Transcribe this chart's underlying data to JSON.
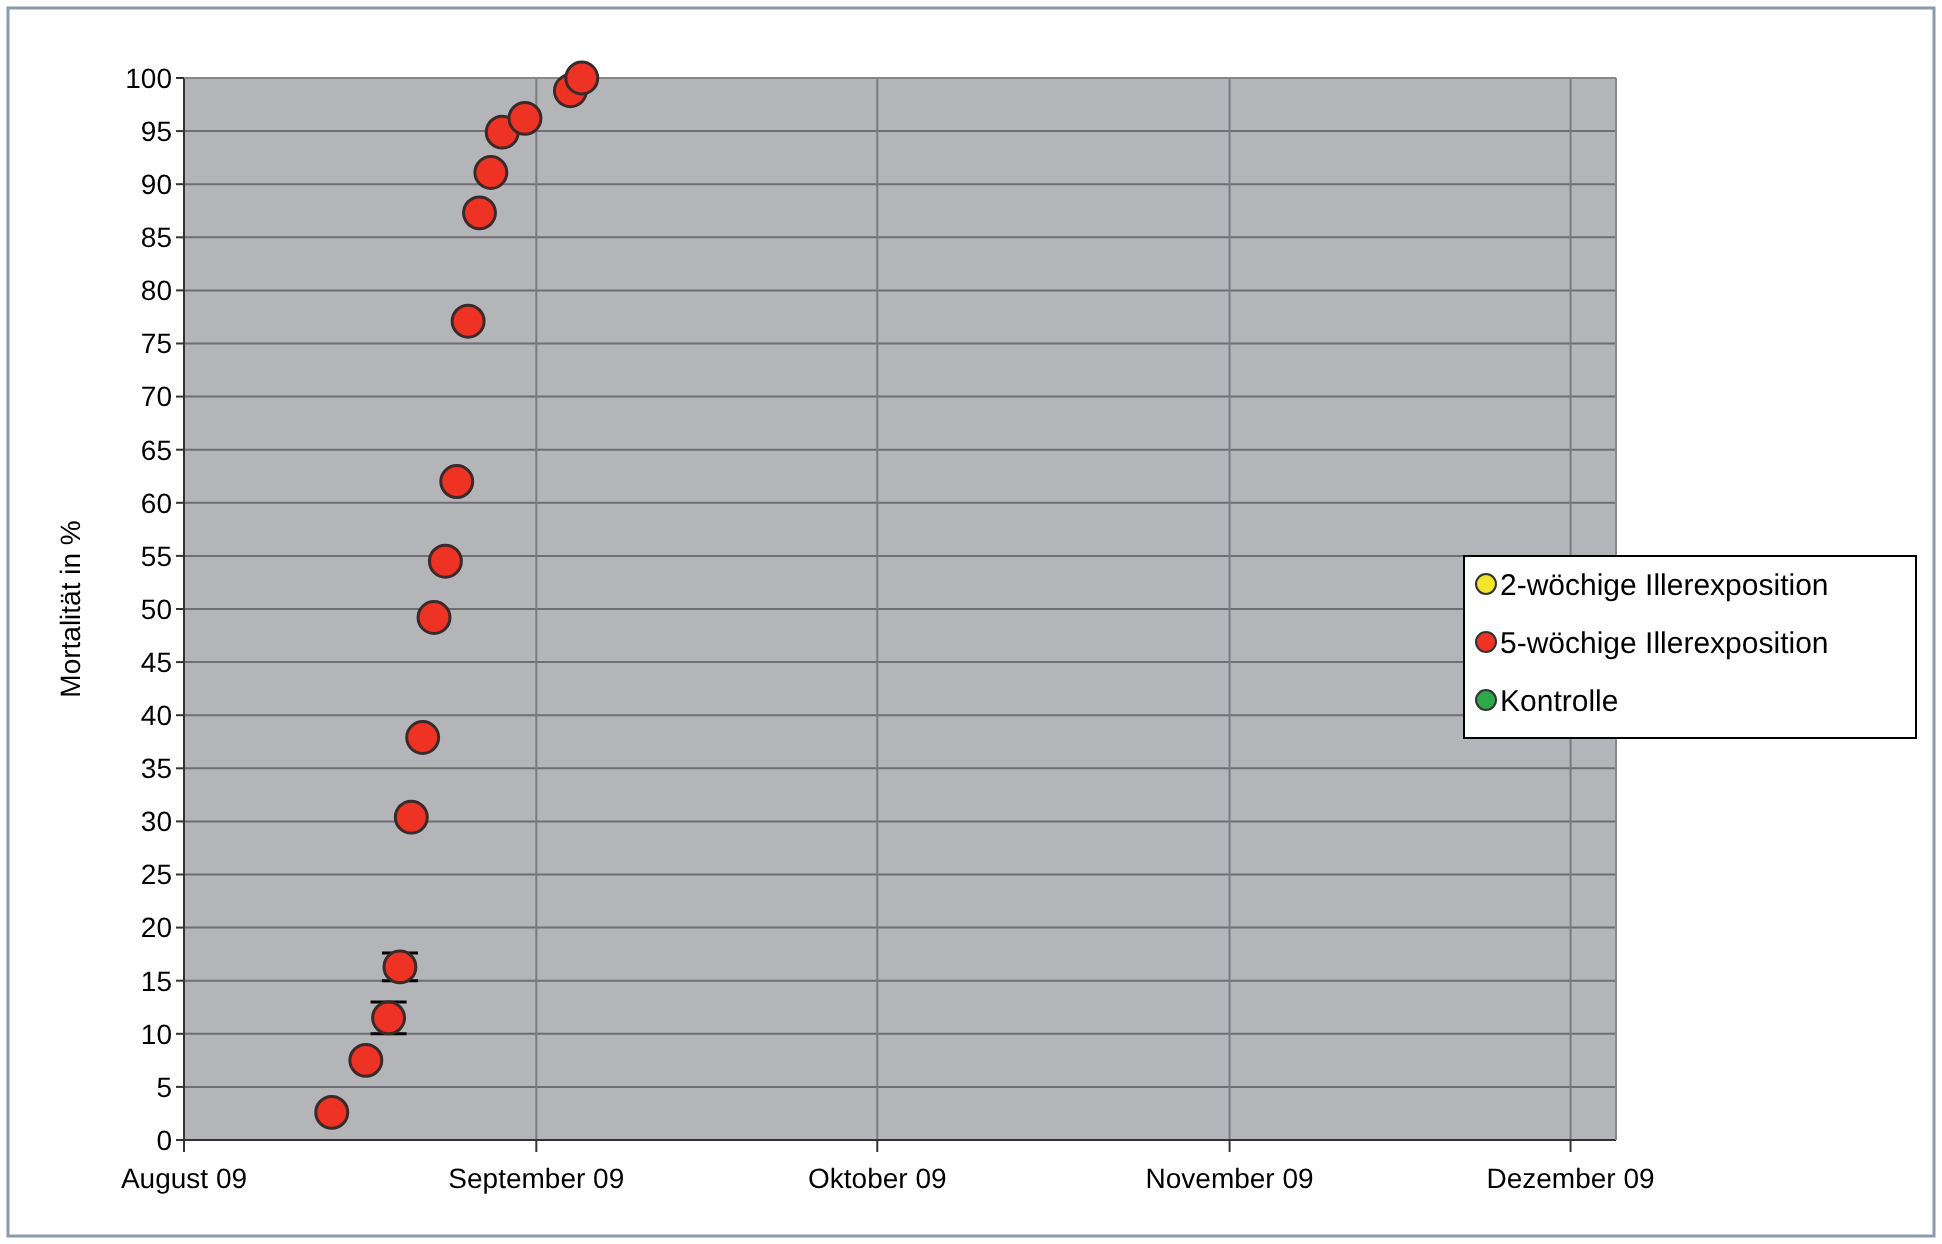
{
  "chart_data": {
    "type": "scatter",
    "ylabel": "Mortalität in %",
    "xlim": [
      "2009-08-01",
      "2009-12-05"
    ],
    "xticks": [
      {
        "value": "2009-08-01",
        "label": "August 09"
      },
      {
        "value": "2009-09-01",
        "label": "September 09"
      },
      {
        "value": "2009-10-01",
        "label": "Oktober 09"
      },
      {
        "value": "2009-11-01",
        "label": "November 09"
      },
      {
        "value": "2009-12-01",
        "label": "Dezember 09"
      }
    ],
    "ylim": [
      0,
      100
    ],
    "yticks": [
      0,
      5,
      10,
      15,
      20,
      25,
      30,
      35,
      40,
      45,
      50,
      55,
      60,
      65,
      70,
      75,
      80,
      85,
      90,
      95,
      100
    ],
    "grid": true,
    "legend": "right",
    "marker": "circle",
    "series": [
      {
        "name": "2-wöchige Illerexposition",
        "color": "#f0e62a"
      },
      {
        "name": "5-wöchige Illerexposition",
        "color": "#ee3224",
        "x": [
          "2009-08-14",
          "2009-08-17",
          "2009-08-19",
          "2009-08-20",
          "2009-08-21",
          "2009-08-22",
          "2009-08-23",
          "2009-08-24",
          "2009-08-25",
          "2009-08-26",
          "2009-08-27",
          "2009-08-28",
          "2009-08-29",
          "2009-08-31",
          "2009-09-04",
          "2009-09-05"
        ],
        "values": [
          2.6,
          7.5,
          11.5,
          16.3,
          30.4,
          37.9,
          49.2,
          54.5,
          62,
          77.1,
          87.3,
          91.1,
          94.9,
          96.2,
          98.8,
          100
        ],
        "errors": [
          null,
          null,
          1.5,
          1.3,
          null,
          null,
          null,
          null,
          null,
          null,
          null,
          null,
          null,
          null,
          null,
          null
        ]
      },
      {
        "name": "Kontrolle",
        "color": "#2ea84a"
      }
    ]
  }
}
